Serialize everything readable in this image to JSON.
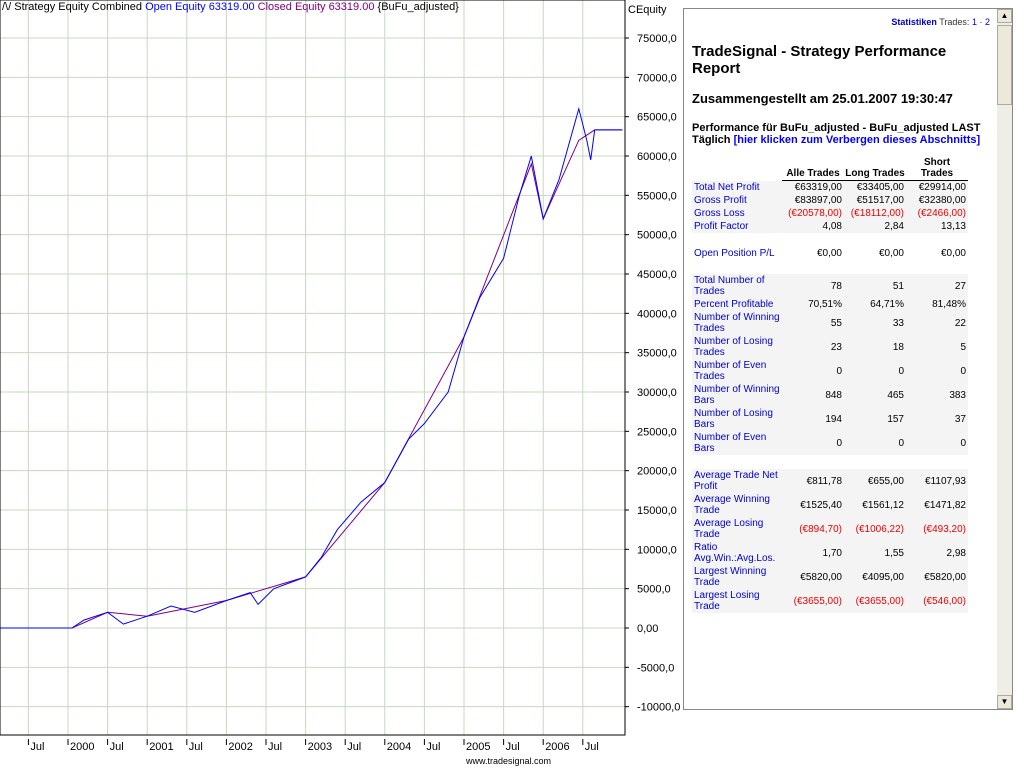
{
  "chart": {
    "title_prefix": "Strategy Equity Combined",
    "open_equity": "Open Equity 63319.00",
    "closed_equity": "Closed Equity 63319.00",
    "symbol": "{BuFu_adjusted}",
    "axis_label": "CEquity",
    "watermark": "www.tradesignal.com"
  },
  "chart_data": {
    "type": "line",
    "title": "Strategy Equity Combined",
    "ylabel": "CEquity",
    "ylim": [
      -12500,
      80000
    ],
    "y_ticks": [
      "75000,0",
      "70000,0",
      "65000,0",
      "60000,0",
      "55000,0",
      "50000,0",
      "45000,0",
      "40000,0",
      "35000,0",
      "30000,0",
      "25000,0",
      "20000,0",
      "15000,0",
      "10000,0",
      "5000,0",
      "0,00",
      "-5000,0",
      "-10000,0"
    ],
    "x_ticks": [
      "Jul",
      "2000",
      "Jul",
      "2001",
      "Jul",
      "2002",
      "Jul",
      "2003",
      "Jul",
      "2004",
      "Jul",
      "2005",
      "Jul",
      "2006",
      "Jul"
    ],
    "series": [
      {
        "name": "Open Equity",
        "color": "#0000ff",
        "x": [
          1999.0,
          2000.05,
          2000.2,
          2000.5,
          2000.7,
          2001.0,
          2001.3,
          2001.6,
          2002.0,
          2002.3,
          2002.4,
          2002.6,
          2003.0,
          2003.2,
          2003.4,
          2003.7,
          2004.0,
          2004.3,
          2004.5,
          2004.8,
          2005.0,
          2005.2,
          2005.5,
          2005.7,
          2005.85,
          2006.0,
          2006.2,
          2006.45,
          2006.55,
          2006.6,
          2006.65,
          2007.0
        ],
        "y": [
          0,
          0,
          1000,
          2000,
          500,
          1500,
          2800,
          2000,
          3500,
          4500,
          3000,
          5000,
          6500,
          9000,
          12500,
          16000,
          18500,
          24000,
          26000,
          30000,
          37000,
          42000,
          47000,
          55000,
          60000,
          52000,
          57000,
          66000,
          62000,
          59500,
          63319,
          63319
        ]
      },
      {
        "name": "Closed Equity",
        "color": "#800080",
        "x": [
          1999.0,
          2000.05,
          2000.5,
          2001.0,
          2002.0,
          2003.0,
          2004.0,
          2005.0,
          2005.85,
          2006.0,
          2006.45,
          2006.65,
          2007.0
        ],
        "y": [
          0,
          0,
          2000,
          1500,
          3500,
          6500,
          18500,
          37000,
          59000,
          52000,
          62000,
          63319,
          63319
        ]
      }
    ]
  },
  "report": {
    "tab_label": "Statistiken",
    "trades_label": "Trades:",
    "page1": "1",
    "sep": "·",
    "page2": "2",
    "title": "TradeSignal - Strategy Performance Report",
    "compiled": "Zusammengestellt am  25.01.2007 19:30:47",
    "perf_for": "Performance für BuFu_adjusted - BuFu_adjusted LAST Täglich",
    "hide_link": "[hier klicken zum Verbergen dieses Abschnitts]",
    "headers": [
      "Alle Trades",
      "Long Trades",
      "Short Trades"
    ],
    "groups": [
      [
        {
          "label": "Total Net Profit",
          "v": [
            "€63319,00",
            "€33405,00",
            "€29914,00"
          ]
        },
        {
          "label": "Gross Profit",
          "v": [
            "€83897,00",
            "€51517,00",
            "€32380,00"
          ]
        },
        {
          "label": "Gross Loss",
          "v": [
            "(€20578,00)",
            "(€18112,00)",
            "(€2466,00)"
          ],
          "neg": true
        },
        {
          "label": "Profit Factor",
          "v": [
            "4,08",
            "2,84",
            "13,13"
          ]
        }
      ],
      [
        {
          "label": "Open Position P/L",
          "v": [
            "€0,00",
            "€0,00",
            "€0,00"
          ]
        }
      ],
      [
        {
          "label": "Total Number of Trades",
          "v": [
            "78",
            "51",
            "27"
          ]
        },
        {
          "label": "Percent Profitable",
          "v": [
            "70,51%",
            "64,71%",
            "81,48%"
          ]
        },
        {
          "label": "Number of Winning Trades",
          "v": [
            "55",
            "33",
            "22"
          ]
        },
        {
          "label": "Number of Losing Trades",
          "v": [
            "23",
            "18",
            "5"
          ]
        },
        {
          "label": "Number of Even Trades",
          "v": [
            "0",
            "0",
            "0"
          ]
        },
        {
          "label": "Number of Winning Bars",
          "v": [
            "848",
            "465",
            "383"
          ]
        },
        {
          "label": "Number of Losing Bars",
          "v": [
            "194",
            "157",
            "37"
          ]
        },
        {
          "label": "Number of Even Bars",
          "v": [
            "0",
            "0",
            "0"
          ]
        }
      ],
      [
        {
          "label": "Average Trade Net Profit",
          "v": [
            "€811,78",
            "€655,00",
            "€1107,93"
          ]
        },
        {
          "label": "Average Winning Trade",
          "v": [
            "€1525,40",
            "€1561,12",
            "€1471,82"
          ]
        },
        {
          "label": "Average Losing Trade",
          "v": [
            "(€894,70)",
            "(€1006,22)",
            "(€493,20)"
          ],
          "neg": true
        },
        {
          "label": "Ratio Avg.Win.:Avg.Los.",
          "v": [
            "1,70",
            "1,55",
            "2,98"
          ]
        },
        {
          "label": "Largest Winning Trade",
          "v": [
            "€5820,00",
            "€4095,00",
            "€5820,00"
          ]
        },
        {
          "label": "Largest Losing Trade",
          "v": [
            "(€3655,00)",
            "(€3655,00)",
            "(€546,00)"
          ],
          "neg": true
        }
      ]
    ]
  }
}
